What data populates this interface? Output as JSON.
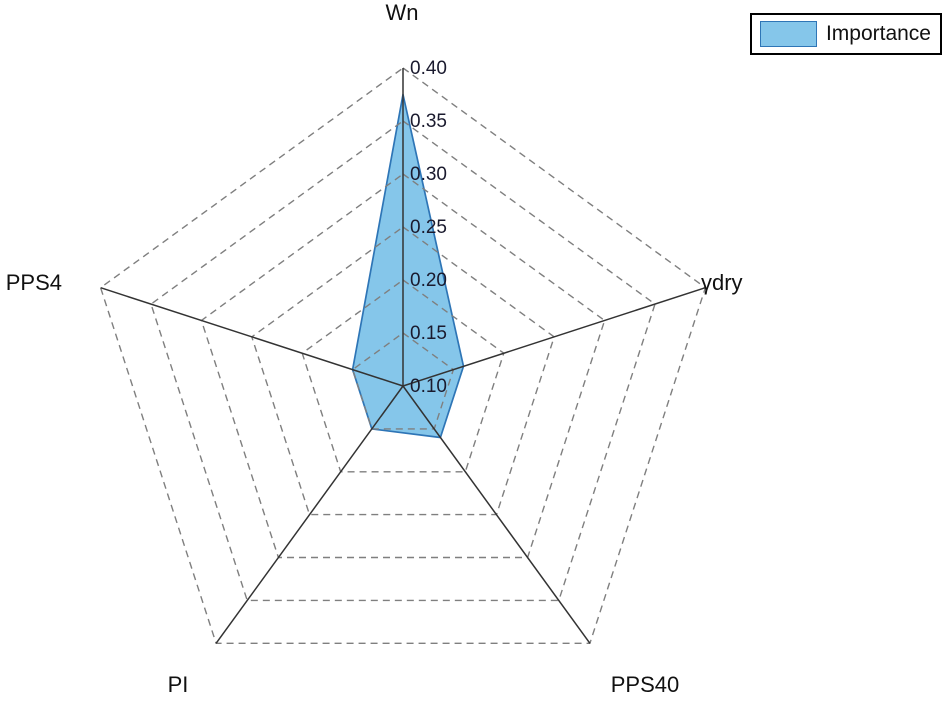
{
  "chart_data": {
    "type": "radar",
    "title": "",
    "categories": [
      "Wn",
      "γdry",
      "PPS40",
      "PI",
      "PPS4"
    ],
    "series": [
      {
        "name": "Importance",
        "values": [
          0.375,
          0.16,
          0.16,
          0.15,
          0.15
        ]
      }
    ],
    "r_min": 0.1,
    "r_max": 0.4,
    "r_step": 0.05,
    "tick_labels": [
      "0.10",
      "0.15",
      "0.20",
      "0.25",
      "0.30",
      "0.35",
      "0.40"
    ],
    "legend": {
      "label": "Importance",
      "position": "top-right"
    },
    "grid": "dashed-pentagon-rings",
    "colors": {
      "fill": "#85C6EA",
      "fill_opacity": "1",
      "stroke": "#2E75B6",
      "grid": "#7F7F7F",
      "axis": "#333333",
      "tick_text": "#1A1A2E",
      "label_text": "#111111"
    }
  }
}
